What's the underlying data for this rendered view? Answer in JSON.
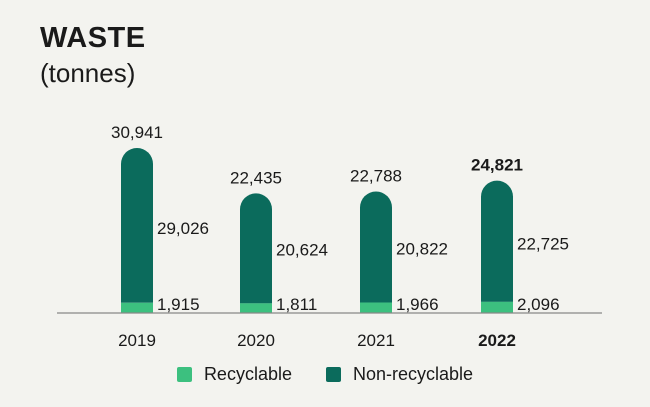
{
  "header": {
    "title": "WASTE",
    "subtitle": "(tonnes)"
  },
  "colors": {
    "recyclable": "#3cc07f",
    "non_recyclable": "#0b6b5c",
    "axis": "#888888",
    "background": "#f3f3ef"
  },
  "chart_data": {
    "type": "bar",
    "stacked": true,
    "title": "WASTE",
    "subtitle": "(tonnes)",
    "categories": [
      "2019",
      "2020",
      "2021",
      "2022"
    ],
    "highlight_category": "2022",
    "totals": [
      "30,941",
      "22,435",
      "22,788",
      "24,821"
    ],
    "total_values": [
      30941,
      22435,
      22788,
      24821
    ],
    "series": [
      {
        "name": "Recyclable",
        "values": [
          1915,
          1811,
          1966,
          2096
        ],
        "labels": [
          "1,915",
          "1,811",
          "1,966",
          "2,096"
        ],
        "color": "#3cc07f"
      },
      {
        "name": "Non-recyclable",
        "values": [
          29026,
          20624,
          20822,
          22725
        ],
        "labels": [
          "29,026",
          "20,624",
          "20,822",
          "22,725"
        ],
        "color": "#0b6b5c"
      }
    ],
    "ylim": [
      0,
      30941
    ],
    "grid": false,
    "legend_position": "bottom"
  }
}
